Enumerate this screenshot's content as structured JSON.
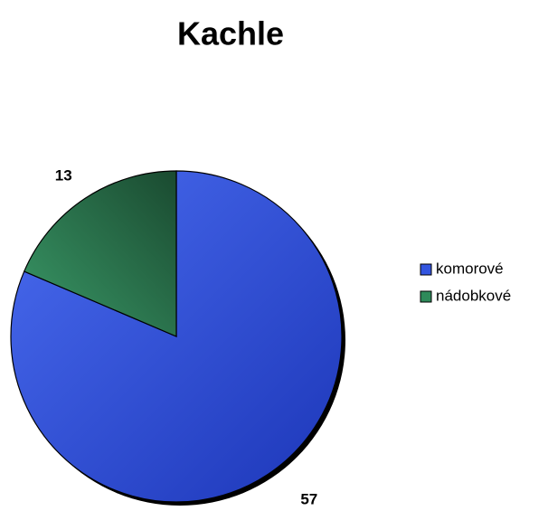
{
  "chart_data": {
    "type": "pie",
    "title": "Kachle",
    "categories": [
      "komorové",
      "nádobkové"
    ],
    "values": [
      57,
      13
    ],
    "colors": [
      "#3355e0",
      "#2e8a5a"
    ],
    "legend": "right"
  }
}
